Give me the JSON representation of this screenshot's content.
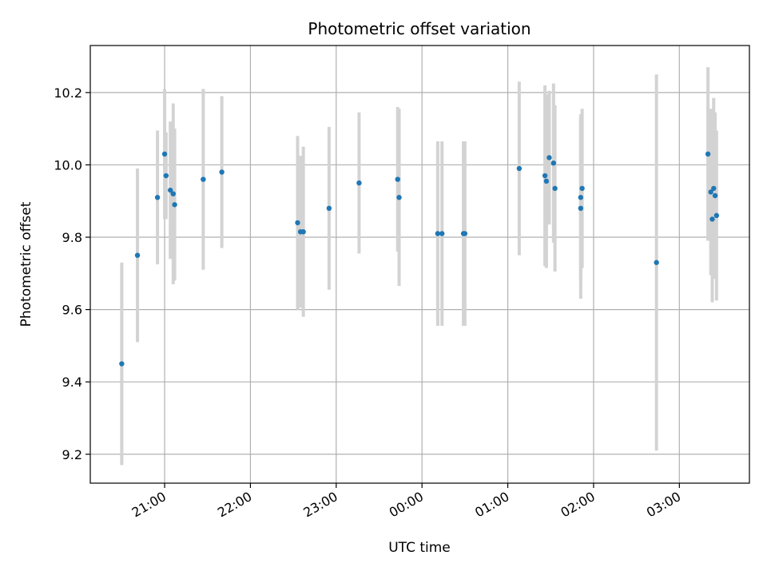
{
  "chart_data": {
    "type": "scatter",
    "title": "Photometric offset variation",
    "xlabel": "UTC time",
    "ylabel": "Photometric offset",
    "x_axis": {
      "type": "time",
      "range": [
        "20:08",
        "03:49"
      ],
      "ticks": [
        "21:00",
        "22:00",
        "23:00",
        "00:00",
        "01:00",
        "02:00",
        "03:00"
      ]
    },
    "y_axis": {
      "range": [
        9.12,
        10.33
      ],
      "ticks": [
        "9.2",
        "9.4",
        "9.6",
        "9.8",
        "10.0",
        "10.2"
      ]
    },
    "grid": true,
    "colors": {
      "points": "#1f77b4",
      "errorbars": "#d3d3d3",
      "grid": "#b0b0b0"
    },
    "points": [
      {
        "x": "20:30",
        "y": 9.45,
        "yerr": 0.28
      },
      {
        "x": "20:41",
        "y": 9.75,
        "yerr": 0.24
      },
      {
        "x": "20:55",
        "y": 9.91,
        "yerr": 0.185
      },
      {
        "x": "21:00",
        "y": 10.03,
        "yerr": 0.18
      },
      {
        "x": "21:01",
        "y": 9.97,
        "yerr": 0.12
      },
      {
        "x": "21:04",
        "y": 9.93,
        "yerr": 0.19
      },
      {
        "x": "21:06",
        "y": 9.92,
        "yerr": 0.25
      },
      {
        "x": "21:07",
        "y": 9.89,
        "yerr": 0.21
      },
      {
        "x": "21:27",
        "y": 9.96,
        "yerr": 0.25
      },
      {
        "x": "21:40",
        "y": 9.98,
        "yerr": 0.21
      },
      {
        "x": "22:33",
        "y": 9.84,
        "yerr": 0.24
      },
      {
        "x": "22:35",
        "y": 9.815,
        "yerr": 0.21
      },
      {
        "x": "22:37",
        "y": 9.815,
        "yerr": 0.235
      },
      {
        "x": "22:55",
        "y": 9.88,
        "yerr": 0.225
      },
      {
        "x": "23:16",
        "y": 9.95,
        "yerr": 0.195
      },
      {
        "x": "23:43",
        "y": 9.96,
        "yerr": 0.2
      },
      {
        "x": "23:44",
        "y": 9.91,
        "yerr": 0.245
      },
      {
        "x": "00:11",
        "y": 9.81,
        "yerr": 0.255
      },
      {
        "x": "00:14",
        "y": 9.81,
        "yerr": 0.255
      },
      {
        "x": "00:29",
        "y": 9.81,
        "yerr": 0.255
      },
      {
        "x": "00:30",
        "y": 9.81,
        "yerr": 0.255
      },
      {
        "x": "01:08",
        "y": 9.99,
        "yerr": 0.24
      },
      {
        "x": "01:26",
        "y": 9.97,
        "yerr": 0.25
      },
      {
        "x": "01:27",
        "y": 9.955,
        "yerr": 0.24
      },
      {
        "x": "01:29",
        "y": 10.02,
        "yerr": 0.185
      },
      {
        "x": "01:32",
        "y": 10.005,
        "yerr": 0.22
      },
      {
        "x": "01:33",
        "y": 9.935,
        "yerr": 0.23
      },
      {
        "x": "01:51",
        "y": 9.91,
        "yerr": 0.23
      },
      {
        "x": "01:52",
        "y": 9.935,
        "yerr": 0.22
      },
      {
        "x": "01:51",
        "y": 9.88,
        "yerr": 0.25
      },
      {
        "x": "02:44",
        "y": 9.73,
        "yerr": 0.52
      },
      {
        "x": "03:20",
        "y": 10.03,
        "yerr": 0.24
      },
      {
        "x": "03:22",
        "y": 9.925,
        "yerr": 0.23
      },
      {
        "x": "03:23",
        "y": 9.85,
        "yerr": 0.23
      },
      {
        "x": "03:24",
        "y": 9.935,
        "yerr": 0.25
      },
      {
        "x": "03:25",
        "y": 9.915,
        "yerr": 0.23
      },
      {
        "x": "03:26",
        "y": 9.86,
        "yerr": 0.235
      }
    ]
  }
}
